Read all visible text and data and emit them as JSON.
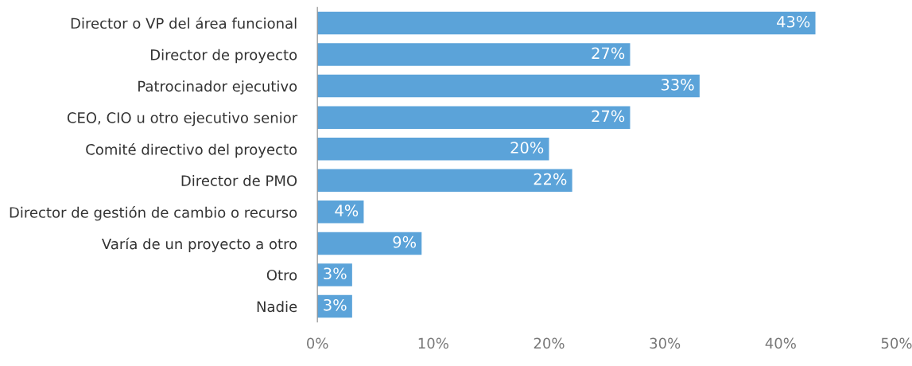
{
  "chart_data": {
    "type": "bar",
    "orientation": "horizontal",
    "categories": [
      "Director o VP del área funcional",
      "Director de proyecto",
      "Patrocinador ejecutivo",
      "CEO, CIO u otro ejecutivo senior",
      "Comité directivo del proyecto",
      "Director de PMO",
      "Director de gestión de cambio o recurso",
      "Varía de un proyecto a otro",
      "Otro",
      "Nadie"
    ],
    "values": [
      43,
      27,
      33,
      27,
      20,
      22,
      4,
      9,
      3,
      3
    ],
    "value_labels": [
      "43%",
      "27%",
      "33%",
      "27%",
      "20%",
      "22%",
      "4%",
      "9%",
      "3%",
      "3%"
    ],
    "color": "#5ba3d9",
    "xlim": [
      0,
      50
    ],
    "xticks": [
      {
        "value": 0,
        "label": "0%"
      },
      {
        "value": 10,
        "label": "10%"
      },
      {
        "value": 20,
        "label": "20%"
      },
      {
        "value": 30,
        "label": "30%"
      },
      {
        "value": 40,
        "label": "40%"
      },
      {
        "value": 50,
        "label": "50%"
      }
    ],
    "grid": false,
    "legend": false
  }
}
